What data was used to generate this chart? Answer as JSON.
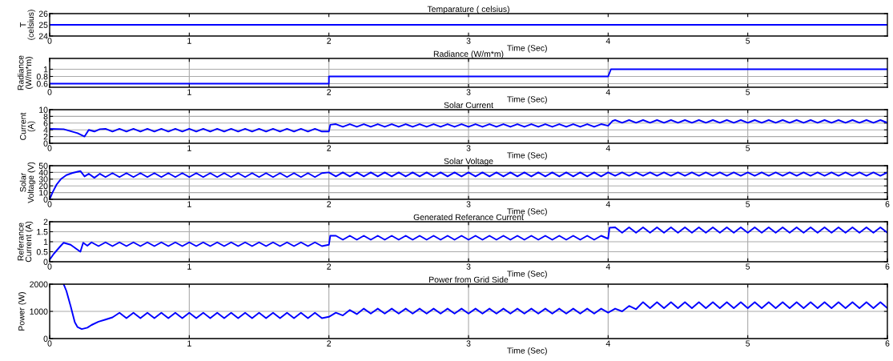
{
  "chart_data": [
    {
      "type": "line",
      "title": "Temparature ( celsius)",
      "xlabel": "Time (Sec)",
      "ylabel": "T\n(celsius)",
      "xlim": [
        0,
        6
      ],
      "xticks": [
        0,
        1,
        2,
        3,
        4,
        5
      ],
      "ylim": [
        24,
        26
      ],
      "yticks": [
        24,
        25,
        26
      ],
      "grid": false,
      "series": [
        {
          "color": "#0000ff",
          "x": [
            0,
            6
          ],
          "values": [
            25,
            25
          ]
        }
      ]
    },
    {
      "type": "line",
      "title": "Radiance (W/m*m)",
      "xlabel": "Time (Sec)",
      "ylabel": "Radiance\n(W/m*m)",
      "xlim": [
        0,
        6
      ],
      "xticks": [
        0,
        1,
        2,
        3,
        4,
        5
      ],
      "ylim": [
        0.5,
        1.3
      ],
      "yticks": [
        0.6,
        0.8,
        1
      ],
      "grid": true,
      "series": [
        {
          "color": "#0000ff",
          "x": [
            0,
            2,
            2,
            4,
            4.02,
            6
          ],
          "values": [
            0.6,
            0.6,
            0.8,
            0.8,
            1,
            1
          ]
        }
      ]
    },
    {
      "type": "line",
      "title": "Solar Current",
      "xlabel": "Time (Sec)",
      "ylabel": "Current\n(A)",
      "xlim": [
        0,
        6
      ],
      "xticks": [
        0,
        1,
        2,
        3,
        4,
        5
      ],
      "ylim": [
        0,
        10
      ],
      "yticks": [
        0,
        2,
        4,
        6,
        8,
        10
      ],
      "grid": true,
      "series": [
        {
          "color": "#0000ff",
          "x": [
            0,
            0.1,
            0.15,
            0.2,
            0.25,
            0.28,
            0.32,
            0.36,
            0.4,
            0.45,
            0.5,
            0.55,
            0.6,
            0.65,
            0.7,
            0.75,
            0.8,
            0.85,
            0.9,
            0.95,
            1,
            1.05,
            1.1,
            1.15,
            1.2,
            1.25,
            1.3,
            1.35,
            1.4,
            1.45,
            1.5,
            1.55,
            1.6,
            1.65,
            1.7,
            1.75,
            1.8,
            1.85,
            1.9,
            1.95,
            2,
            2.01,
            2.05,
            2.1,
            2.15,
            2.2,
            2.25,
            2.3,
            2.35,
            2.4,
            2.45,
            2.5,
            2.55,
            2.6,
            2.65,
            2.7,
            2.75,
            2.8,
            2.85,
            2.9,
            2.95,
            3,
            3.05,
            3.1,
            3.15,
            3.2,
            3.25,
            3.3,
            3.35,
            3.4,
            3.45,
            3.5,
            3.55,
            3.6,
            3.65,
            3.7,
            3.75,
            3.8,
            3.85,
            3.9,
            3.95,
            4,
            4.03,
            4.05,
            4.1,
            4.15,
            4.2,
            4.25,
            4.3,
            4.35,
            4.4,
            4.45,
            4.5,
            4.55,
            4.6,
            4.65,
            4.7,
            4.75,
            4.8,
            4.85,
            4.9,
            4.95,
            5,
            5.05,
            5.1,
            5.15,
            5.2,
            5.25,
            5.3,
            5.35,
            5.4,
            5.45,
            5.5,
            5.55,
            5.6,
            5.65,
            5.7,
            5.75,
            5.8,
            5.85,
            5.9,
            5.95,
            6
          ],
          "values": [
            4.3,
            4.2,
            3.6,
            3.0,
            2.0,
            4.0,
            3.5,
            4.2,
            4.3,
            3.5,
            4.3,
            3.5,
            4.3,
            3.5,
            4.3,
            3.5,
            4.3,
            3.5,
            4.3,
            3.5,
            4.3,
            3.5,
            4.3,
            3.5,
            4.3,
            3.5,
            4.3,
            3.5,
            4.3,
            3.5,
            4.3,
            3.5,
            4.3,
            3.5,
            4.3,
            3.5,
            4.3,
            3.5,
            4.3,
            3.5,
            3.5,
            5.5,
            5.7,
            4.9,
            5.7,
            4.9,
            5.7,
            4.9,
            5.7,
            4.9,
            5.7,
            4.9,
            5.7,
            4.9,
            5.7,
            4.9,
            5.7,
            4.9,
            5.7,
            4.9,
            5.7,
            4.9,
            5.7,
            4.9,
            5.7,
            4.9,
            5.7,
            4.9,
            5.7,
            4.9,
            5.7,
            4.9,
            5.7,
            4.9,
            5.7,
            4.9,
            5.7,
            4.9,
            5.7,
            4.9,
            5.7,
            5.2,
            6.6,
            6.9,
            6.1,
            6.9,
            6.1,
            6.9,
            6.1,
            6.9,
            6.1,
            6.9,
            6.1,
            6.9,
            6.1,
            6.9,
            6.1,
            6.9,
            6.1,
            6.9,
            6.1,
            6.9,
            6.1,
            6.9,
            6.1,
            6.9,
            6.1,
            6.9,
            6.1,
            6.9,
            6.1,
            6.9,
            6.1,
            6.9,
            6.1,
            6.9,
            6.1,
            6.9,
            6.1,
            6.9,
            6.1,
            6.9,
            6.1
          ]
        }
      ]
    },
    {
      "type": "line",
      "title": "Solar Voltage",
      "xlabel": "Time (Sec)",
      "ylabel": "Solar\nVoltage (V)",
      "xlim": [
        0,
        6
      ],
      "xticks": [
        0,
        1,
        2,
        3,
        4,
        5,
        6
      ],
      "ylim": [
        0,
        50
      ],
      "yticks": [
        0,
        10,
        20,
        30,
        40,
        50
      ],
      "grid": true,
      "series": [
        {
          "color": "#0000ff",
          "x": [
            0,
            0.02,
            0.05,
            0.08,
            0.12,
            0.16,
            0.2,
            0.22,
            0.25,
            0.28,
            0.32,
            0.36,
            0.4,
            0.45,
            0.5,
            0.55,
            0.6,
            0.65,
            0.7,
            0.75,
            0.8,
            0.85,
            0.9,
            0.95,
            1,
            1.05,
            1.1,
            1.15,
            1.2,
            1.25,
            1.3,
            1.35,
            1.4,
            1.45,
            1.5,
            1.55,
            1.6,
            1.65,
            1.7,
            1.75,
            1.8,
            1.85,
            1.9,
            1.95,
            2,
            2.05,
            2.1,
            2.15,
            2.2,
            2.25,
            2.3,
            2.35,
            2.4,
            2.45,
            2.5,
            2.55,
            2.6,
            2.65,
            2.7,
            2.75,
            2.8,
            2.85,
            2.9,
            2.95,
            3,
            3.05,
            3.1,
            3.15,
            3.2,
            3.25,
            3.3,
            3.35,
            3.4,
            3.45,
            3.5,
            3.55,
            3.6,
            3.65,
            3.7,
            3.75,
            3.8,
            3.85,
            3.9,
            3.95,
            4,
            4.05,
            4.1,
            4.15,
            4.2,
            4.25,
            4.3,
            4.35,
            4.4,
            4.45,
            4.5,
            4.55,
            4.6,
            4.65,
            4.7,
            4.75,
            4.8,
            4.85,
            4.9,
            4.95,
            5,
            5.05,
            5.1,
            5.15,
            5.2,
            5.25,
            5.3,
            5.35,
            5.4,
            5.45,
            5.5,
            5.55,
            5.6,
            5.65,
            5.7,
            5.75,
            5.8,
            5.85,
            5.9,
            5.95,
            6
          ],
          "values": [
            0,
            10,
            22,
            30,
            36,
            39,
            41,
            42,
            34,
            38,
            32,
            38,
            33,
            39,
            33,
            39,
            33,
            39,
            33,
            39,
            33,
            39,
            33,
            39,
            33,
            39,
            33,
            39,
            33,
            39,
            33,
            39,
            33,
            39,
            33,
            39,
            33,
            39,
            33,
            39,
            33,
            39,
            33,
            39,
            40,
            34,
            40,
            34,
            40,
            34,
            40,
            34,
            40,
            34,
            40,
            34,
            40,
            34,
            40,
            34,
            40,
            34,
            40,
            34,
            40,
            34,
            40,
            34,
            40,
            34,
            40,
            34,
            40,
            34,
            40,
            34,
            40,
            34,
            40,
            34,
            40,
            34,
            40,
            34,
            40,
            35,
            40,
            35,
            40,
            35,
            40,
            35,
            40,
            35,
            40,
            35,
            40,
            35,
            40,
            35,
            40,
            35,
            40,
            35,
            40,
            35,
            40,
            35,
            40,
            35,
            40,
            35,
            40,
            35,
            40,
            35,
            40,
            35,
            40,
            35,
            40,
            35,
            40,
            35,
            40
          ]
        }
      ]
    },
    {
      "type": "line",
      "title": "Generated Referance Current",
      "xlabel": "Time (Sec)",
      "ylabel": "Referance\nCurrent (A)",
      "xlim": [
        0,
        6
      ],
      "xticks": [
        0,
        1,
        2,
        3,
        4,
        5,
        6
      ],
      "ylim": [
        0,
        2
      ],
      "yticks": [
        0,
        0.5,
        1,
        1.5,
        2
      ],
      "grid": true,
      "series": [
        {
          "color": "#0000ff",
          "x": [
            0,
            0.03,
            0.08,
            0.1,
            0.15,
            0.2,
            0.22,
            0.24,
            0.27,
            0.3,
            0.35,
            0.4,
            0.45,
            0.5,
            0.55,
            0.6,
            0.65,
            0.7,
            0.75,
            0.8,
            0.85,
            0.9,
            0.95,
            1,
            1.05,
            1.1,
            1.15,
            1.2,
            1.25,
            1.3,
            1.35,
            1.4,
            1.45,
            1.5,
            1.55,
            1.6,
            1.65,
            1.7,
            1.75,
            1.8,
            1.85,
            1.9,
            1.95,
            2,
            2.01,
            2.05,
            2.1,
            2.15,
            2.2,
            2.25,
            2.3,
            2.35,
            2.4,
            2.45,
            2.5,
            2.55,
            2.6,
            2.65,
            2.7,
            2.75,
            2.8,
            2.85,
            2.9,
            2.95,
            3,
            3.05,
            3.1,
            3.15,
            3.2,
            3.25,
            3.3,
            3.35,
            3.4,
            3.45,
            3.5,
            3.55,
            3.6,
            3.65,
            3.7,
            3.75,
            3.8,
            3.85,
            3.9,
            3.95,
            4,
            4.01,
            4.05,
            4.1,
            4.15,
            4.2,
            4.25,
            4.3,
            4.35,
            4.4,
            4.45,
            4.5,
            4.55,
            4.6,
            4.65,
            4.7,
            4.75,
            4.8,
            4.85,
            4.9,
            4.95,
            5,
            5.05,
            5.1,
            5.15,
            5.2,
            5.25,
            5.3,
            5.35,
            5.4,
            5.45,
            5.5,
            5.55,
            5.6,
            5.65,
            5.7,
            5.75,
            5.8,
            5.85,
            5.9,
            5.95,
            6
          ],
          "values": [
            0.1,
            0.4,
            0.8,
            0.95,
            0.85,
            0.6,
            0.5,
            0.95,
            0.8,
            0.97,
            0.78,
            0.97,
            0.78,
            0.97,
            0.78,
            0.97,
            0.78,
            0.97,
            0.78,
            0.97,
            0.78,
            0.97,
            0.78,
            0.97,
            0.78,
            0.97,
            0.78,
            0.97,
            0.78,
            0.97,
            0.78,
            0.97,
            0.78,
            0.97,
            0.78,
            0.97,
            0.78,
            0.97,
            0.78,
            0.97,
            0.78,
            0.97,
            0.78,
            0.85,
            1.3,
            1.3,
            1.1,
            1.3,
            1.1,
            1.3,
            1.1,
            1.3,
            1.1,
            1.3,
            1.1,
            1.3,
            1.1,
            1.3,
            1.1,
            1.3,
            1.1,
            1.3,
            1.1,
            1.3,
            1.1,
            1.3,
            1.1,
            1.3,
            1.1,
            1.3,
            1.1,
            1.3,
            1.1,
            1.3,
            1.1,
            1.3,
            1.1,
            1.3,
            1.1,
            1.3,
            1.1,
            1.3,
            1.1,
            1.3,
            1.15,
            1.7,
            1.72,
            1.45,
            1.72,
            1.45,
            1.72,
            1.45,
            1.72,
            1.45,
            1.72,
            1.45,
            1.72,
            1.45,
            1.72,
            1.45,
            1.72,
            1.45,
            1.72,
            1.45,
            1.72,
            1.45,
            1.72,
            1.45,
            1.72,
            1.45,
            1.72,
            1.45,
            1.72,
            1.45,
            1.72,
            1.45,
            1.72,
            1.45,
            1.72,
            1.45,
            1.72,
            1.45,
            1.72,
            1.45,
            1.72,
            1.45
          ]
        }
      ]
    },
    {
      "type": "line",
      "title": "Power from Grid Side",
      "xlabel": "Time (Sec)",
      "ylabel": "Power (W)",
      "xlim": [
        0,
        6
      ],
      "xticks": [
        0,
        1,
        2,
        3,
        4,
        5,
        6
      ],
      "ylim": [
        0,
        2000
      ],
      "yticks": [
        0,
        1000,
        2000
      ],
      "grid": true,
      "series": [
        {
          "color": "#0000ff",
          "x": [
            0.1,
            0.12,
            0.15,
            0.18,
            0.2,
            0.23,
            0.27,
            0.3,
            0.35,
            0.4,
            0.45,
            0.5,
            0.55,
            0.6,
            0.65,
            0.7,
            0.75,
            0.8,
            0.85,
            0.9,
            0.95,
            1,
            1.05,
            1.1,
            1.15,
            1.2,
            1.25,
            1.3,
            1.35,
            1.4,
            1.45,
            1.5,
            1.55,
            1.6,
            1.65,
            1.7,
            1.75,
            1.8,
            1.85,
            1.9,
            1.95,
            2,
            2.05,
            2.1,
            2.15,
            2.2,
            2.25,
            2.3,
            2.35,
            2.4,
            2.45,
            2.5,
            2.55,
            2.6,
            2.65,
            2.7,
            2.75,
            2.8,
            2.85,
            2.9,
            2.95,
            3,
            3.05,
            3.1,
            3.15,
            3.2,
            3.25,
            3.3,
            3.35,
            3.4,
            3.45,
            3.5,
            3.55,
            3.6,
            3.65,
            3.7,
            3.75,
            3.8,
            3.85,
            3.9,
            3.95,
            4,
            4.05,
            4.1,
            4.15,
            4.2,
            4.25,
            4.3,
            4.35,
            4.4,
            4.45,
            4.5,
            4.55,
            4.6,
            4.65,
            4.7,
            4.75,
            4.8,
            4.85,
            4.9,
            4.95,
            5,
            5.05,
            5.1,
            5.15,
            5.2,
            5.25,
            5.3,
            5.35,
            5.4,
            5.45,
            5.5,
            5.55,
            5.6,
            5.65,
            5.7,
            5.75,
            5.8,
            5.85,
            5.9,
            5.95,
            6
          ],
          "values": [
            2000,
            1750,
            1200,
            600,
            420,
            350,
            400,
            500,
            620,
            700,
            780,
            950,
            750,
            950,
            750,
            950,
            750,
            950,
            750,
            950,
            750,
            950,
            750,
            950,
            750,
            950,
            750,
            950,
            750,
            950,
            750,
            950,
            750,
            950,
            750,
            950,
            750,
            950,
            750,
            950,
            750,
            800,
            950,
            850,
            1050,
            900,
            1100,
            920,
            1100,
            920,
            1100,
            920,
            1100,
            920,
            1100,
            920,
            1100,
            920,
            1100,
            920,
            1100,
            920,
            1100,
            920,
            1100,
            920,
            1100,
            920,
            1100,
            920,
            1100,
            920,
            1100,
            920,
            1100,
            920,
            1100,
            920,
            1100,
            920,
            1100,
            950,
            1100,
            1000,
            1200,
            1080,
            1340,
            1120,
            1340,
            1120,
            1340,
            1120,
            1340,
            1120,
            1340,
            1120,
            1340,
            1120,
            1340,
            1120,
            1340,
            1120,
            1340,
            1120,
            1340,
            1120,
            1340,
            1120,
            1340,
            1120,
            1340,
            1120,
            1340,
            1120,
            1340,
            1120,
            1340,
            1120,
            1340,
            1120,
            1340,
            1120
          ]
        }
      ]
    }
  ]
}
